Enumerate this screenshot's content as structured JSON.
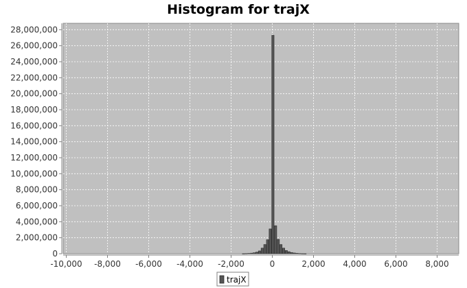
{
  "chart_data": {
    "type": "bar",
    "title": "Histogram for trajX",
    "xlabel": "",
    "ylabel": "",
    "xlim": [
      -10150,
      9050
    ],
    "ylim": [
      0,
      28800000
    ],
    "x_ticks": [
      -10000,
      -8000,
      -6000,
      -4000,
      -2000,
      0,
      2000,
      4000,
      6000,
      8000
    ],
    "x_tick_labels": [
      "-10,000",
      "-8,000",
      "-6,000",
      "-4,000",
      "-2,000",
      "0",
      "2,000",
      "4,000",
      "6,000",
      "8,000"
    ],
    "y_ticks": [
      0,
      2000000,
      4000000,
      6000000,
      8000000,
      10000000,
      12000000,
      14000000,
      16000000,
      18000000,
      20000000,
      22000000,
      24000000,
      26000000,
      28000000
    ],
    "y_tick_labels": [
      "0",
      "2,000,000",
      "4,000,000",
      "6,000,000",
      "8,000,000",
      "10,000,000",
      "12,000,000",
      "14,000,000",
      "16,000,000",
      "18,000,000",
      "20,000,000",
      "22,000,000",
      "24,000,000",
      "26,000,000",
      "28,000,000"
    ],
    "grid": true,
    "legend_position": "bottom-center",
    "series": [
      {
        "name": "trajX",
        "color": "#555555",
        "bin_width": 130,
        "bins": [
          {
            "x": -1400,
            "y": 10000
          },
          {
            "x": -1270,
            "y": 20000
          },
          {
            "x": -1140,
            "y": 40000
          },
          {
            "x": -1010,
            "y": 70000
          },
          {
            "x": -880,
            "y": 120000
          },
          {
            "x": -750,
            "y": 200000
          },
          {
            "x": -620,
            "y": 350000
          },
          {
            "x": -490,
            "y": 700000
          },
          {
            "x": -360,
            "y": 1150000
          },
          {
            "x": -230,
            "y": 1750000
          },
          {
            "x": -100,
            "y": 3100000
          },
          {
            "x": 30,
            "y": 27300000
          },
          {
            "x": 160,
            "y": 3500000
          },
          {
            "x": 290,
            "y": 1800000
          },
          {
            "x": 420,
            "y": 1150000
          },
          {
            "x": 550,
            "y": 700000
          },
          {
            "x": 680,
            "y": 400000
          },
          {
            "x": 810,
            "y": 250000
          },
          {
            "x": 940,
            "y": 150000
          },
          {
            "x": 1070,
            "y": 90000
          },
          {
            "x": 1200,
            "y": 50000
          },
          {
            "x": 1330,
            "y": 25000
          },
          {
            "x": 1460,
            "y": 12000
          },
          {
            "x": 1590,
            "y": 6000
          }
        ]
      }
    ]
  },
  "colors": {
    "plot_background": "#c0c0c0",
    "gridline": "#ffffff",
    "bar_fill": "#555555",
    "bar_stroke": "#2b2b2b"
  }
}
